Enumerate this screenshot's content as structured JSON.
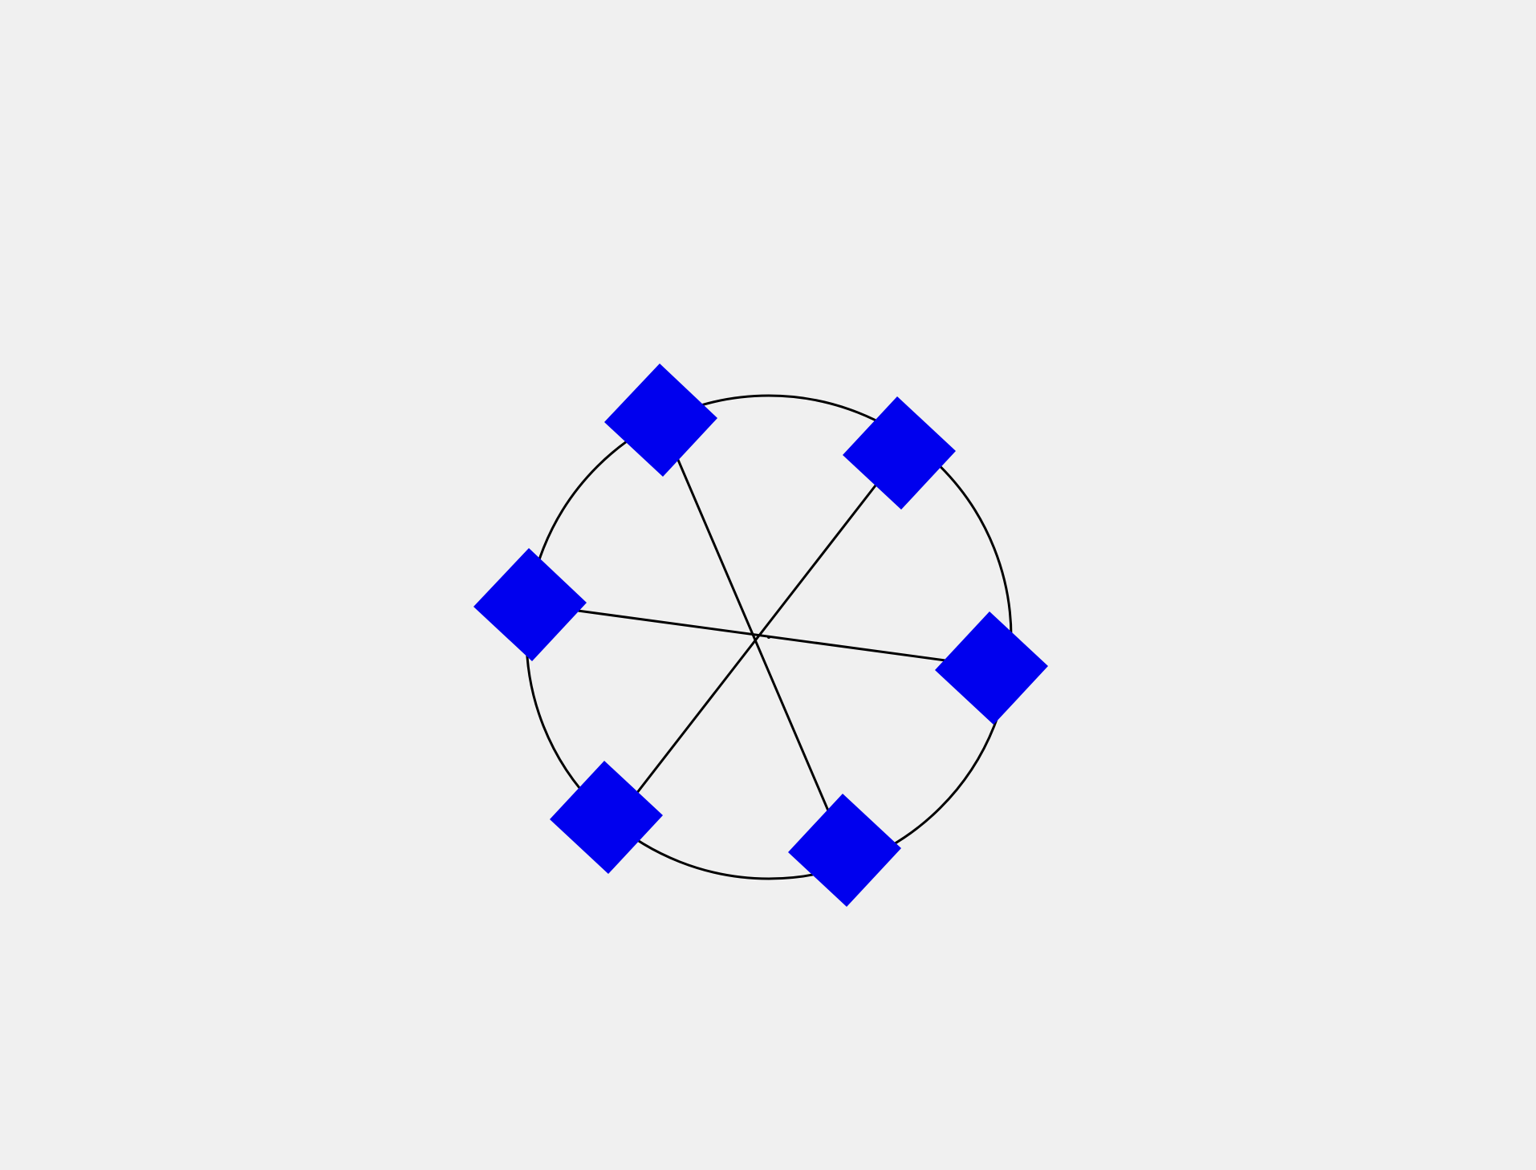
{
  "diagram": {
    "type": "ferris-wheel",
    "node_count": 6,
    "spoke_count": 3,
    "colors": {
      "background": "#f0f0f0",
      "node_fill": "#0000ee",
      "line_stroke": "#000000"
    },
    "nodes": [
      {
        "id": "node-1"
      },
      {
        "id": "node-2"
      },
      {
        "id": "node-3"
      },
      {
        "id": "node-4"
      },
      {
        "id": "node-5"
      },
      {
        "id": "node-6"
      }
    ]
  }
}
